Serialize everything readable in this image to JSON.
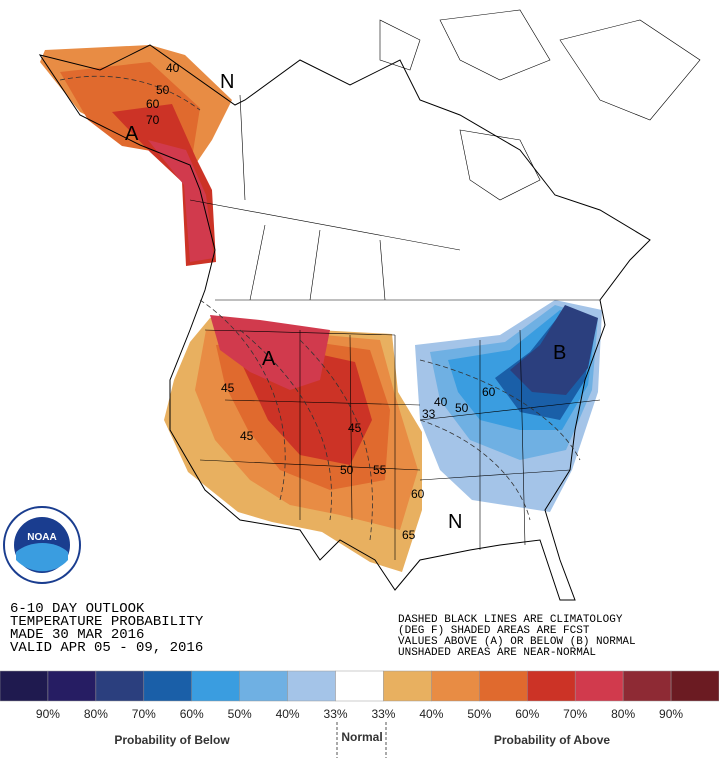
{
  "title": [
    "6-10 DAY OUTLOOK",
    "TEMPERATURE PROBABILITY",
    "MADE  30 MAR 2016",
    "VALID  APR 05 - 09, 2016"
  ],
  "notes": [
    "DASHED BLACK LINES ARE CLIMATOLOGY",
    "(DEG F) SHADED AREAS ARE FCST",
    "VALUES ABOVE (A) OR BELOW (B) NORMAL",
    "UNSHADED AREAS ARE NEAR-NORMAL"
  ],
  "logo": "NOAA",
  "map_labels": {
    "above_1": "A",
    "above_2": "A",
    "below_1": "B",
    "normal_1": "N",
    "normal_2": "N",
    "contours": [
      "40",
      "50",
      "60",
      "70",
      "33",
      "40",
      "50",
      "60",
      "45",
      "45",
      "45",
      "50",
      "55",
      "60",
      "65"
    ]
  },
  "legend": {
    "colors": [
      "#1f1a4f",
      "#261d63",
      "#2b3f7e",
      "#1a5fa8",
      "#3a9de0",
      "#6fb0e3",
      "#a4c4e8",
      "#ffffff",
      "#e8b060",
      "#e88c44",
      "#e06a2e",
      "#cc3326",
      "#d13a4d",
      "#8e2a34",
      "#6b1b22"
    ],
    "labels": [
      "90%",
      "80%",
      "70%",
      "60%",
      "50%",
      "40%",
      "33%",
      "33%",
      "40%",
      "50%",
      "60%",
      "70%",
      "80%",
      "90%"
    ],
    "below_caption": "Probability of Below",
    "normal_caption": "Normal",
    "above_caption": "Probability of Above"
  }
}
